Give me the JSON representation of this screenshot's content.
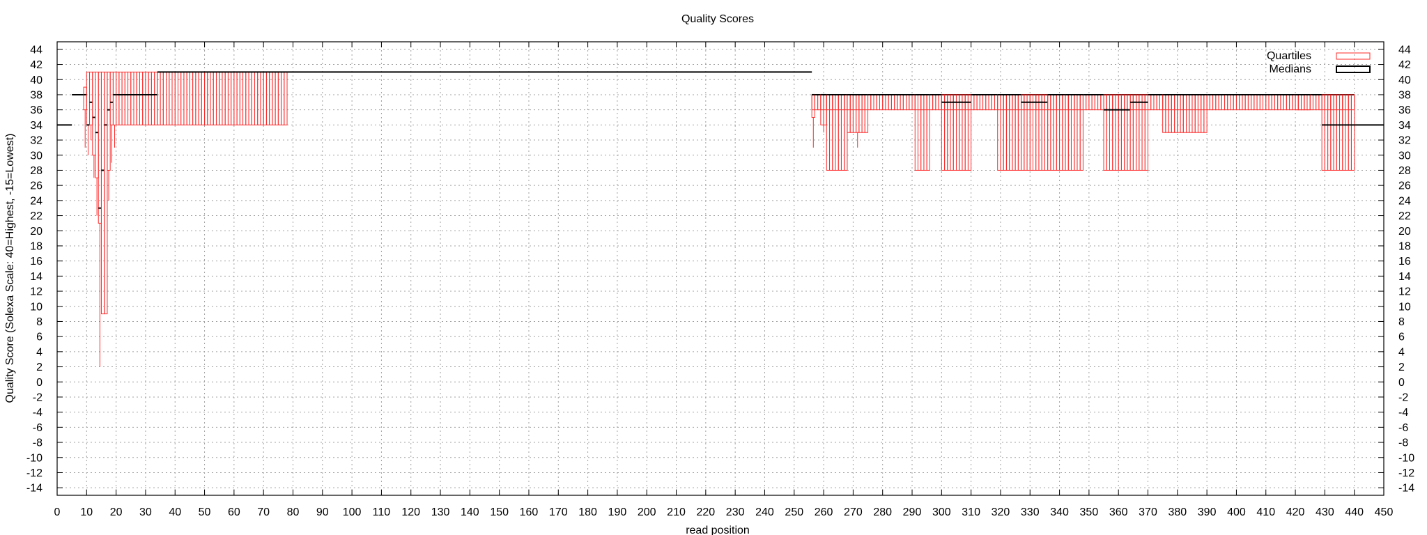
{
  "chart_data": {
    "type": "boxplot",
    "title": "Quality Scores",
    "xlabel": "read position",
    "ylabel": "Quality Score (Solexa Scale: 40=Highest, -15=Lowest)",
    "xlim": [
      0,
      450
    ],
    "ylim": [
      -15,
      45
    ],
    "x_ticks": [
      0,
      10,
      20,
      30,
      40,
      50,
      60,
      70,
      80,
      90,
      100,
      110,
      120,
      130,
      140,
      150,
      160,
      170,
      180,
      190,
      200,
      210,
      220,
      230,
      240,
      250,
      260,
      270,
      280,
      290,
      300,
      310,
      320,
      330,
      340,
      350,
      360,
      370,
      380,
      390,
      400,
      410,
      420,
      430,
      440,
      450
    ],
    "y_ticks": [
      -14,
      -12,
      -10,
      -8,
      -6,
      -4,
      -2,
      0,
      2,
      4,
      6,
      8,
      10,
      12,
      14,
      16,
      18,
      20,
      22,
      24,
      26,
      28,
      30,
      32,
      34,
      36,
      38,
      40,
      42,
      44
    ],
    "grid": true,
    "legend_position": "top-right",
    "legend": [
      "Quartiles",
      "Medians"
    ],
    "colors": {
      "quartiles": "#ff2a2a",
      "medians": "#000000"
    },
    "segments": [
      {
        "x_start": 0,
        "x_end": 5,
        "median": 34
      },
      {
        "x_start": 5,
        "x_end": 9,
        "median": 38
      },
      {
        "x_start": 9,
        "q1": 36,
        "q3": 39,
        "median": 38,
        "low": 31,
        "high": 39
      },
      {
        "x_start": 10,
        "q1": 34,
        "q3": 41,
        "median": 34,
        "low": 30,
        "high": 41
      },
      {
        "x_start": 11,
        "q1": 34,
        "q3": 41,
        "median": 37,
        "low": 32,
        "high": 41
      },
      {
        "x_start": 12,
        "q1": 30,
        "q3": 41,
        "median": 35,
        "low": 27,
        "high": 41
      },
      {
        "x_start": 13,
        "q1": 27,
        "q3": 41,
        "median": 33,
        "low": 22,
        "high": 41
      },
      {
        "x_start": 14,
        "q1": 21,
        "q3": 41,
        "median": 23,
        "low": 2,
        "high": 41
      },
      {
        "x_start": 15,
        "q1": 9,
        "q3": 41,
        "median": 28,
        "low": 9,
        "high": 41
      },
      {
        "x_start": 16,
        "q1": 9,
        "q3": 41,
        "median": 34,
        "low": 9,
        "high": 41
      },
      {
        "x_start": 17,
        "q1": 28,
        "q3": 41,
        "median": 36,
        "low": 24,
        "high": 41
      },
      {
        "x_start": 18,
        "q1": 34,
        "q3": 41,
        "median": 37,
        "low": 29,
        "high": 41
      },
      {
        "x_start": 19,
        "q1": 34,
        "q3": 41,
        "median": 38,
        "low": 31,
        "high": 41
      },
      {
        "x_start": 20,
        "x_end": 34,
        "q1": 34,
        "q3": 41,
        "median": 38
      },
      {
        "x_start": 34,
        "x_end": 78,
        "q1": 34,
        "q3": 41,
        "median": 41
      },
      {
        "x_start": 78,
        "x_end": 256,
        "median": 41
      },
      {
        "x_start": 256,
        "x_end": 440,
        "q1": 36,
        "q3": 38,
        "median": 38
      },
      {
        "x_start": 256,
        "x_end": 257,
        "q1": 35,
        "q3": 38,
        "median": 38,
        "low": 31
      },
      {
        "x_start": 259,
        "x_end": 261,
        "q1": 34,
        "q3": 38,
        "median": 38,
        "low": 33
      },
      {
        "x_start": 261,
        "x_end": 268,
        "q1": 28,
        "q3": 38,
        "median": 38
      },
      {
        "x_start": 268,
        "x_end": 275,
        "q1": 33,
        "q3": 38,
        "median": 38,
        "low": 31
      },
      {
        "x_start": 291,
        "x_end": 296,
        "q1": 28,
        "q3": 38,
        "median": 38
      },
      {
        "x_start": 300,
        "x_end": 310,
        "q1": 28,
        "q3": 38,
        "median": 37
      },
      {
        "x_start": 319,
        "x_end": 327,
        "q1": 28,
        "q3": 38,
        "median": 38
      },
      {
        "x_start": 327,
        "x_end": 336,
        "q1": 28,
        "q3": 38,
        "median": 37
      },
      {
        "x_start": 336,
        "x_end": 342,
        "q1": 28,
        "q3": 38,
        "median": 38
      },
      {
        "x_start": 342,
        "x_end": 348,
        "q1": 28,
        "q3": 38,
        "median": 38
      },
      {
        "x_start": 355,
        "x_end": 364,
        "q1": 28,
        "q3": 38,
        "median": 36
      },
      {
        "x_start": 364,
        "x_end": 370,
        "q1": 28,
        "q3": 38,
        "median": 37
      },
      {
        "x_start": 375,
        "x_end": 390,
        "q1": 33,
        "q3": 38,
        "median": 38
      },
      {
        "x_start": 420,
        "x_end": 425,
        "q1": 36,
        "q3": 38,
        "median": 38
      },
      {
        "x_start": 429,
        "x_end": 440,
        "q1": 28,
        "q3": 38,
        "median": 34
      },
      {
        "x_start": 440,
        "x_end": 450,
        "median": 34
      }
    ]
  }
}
